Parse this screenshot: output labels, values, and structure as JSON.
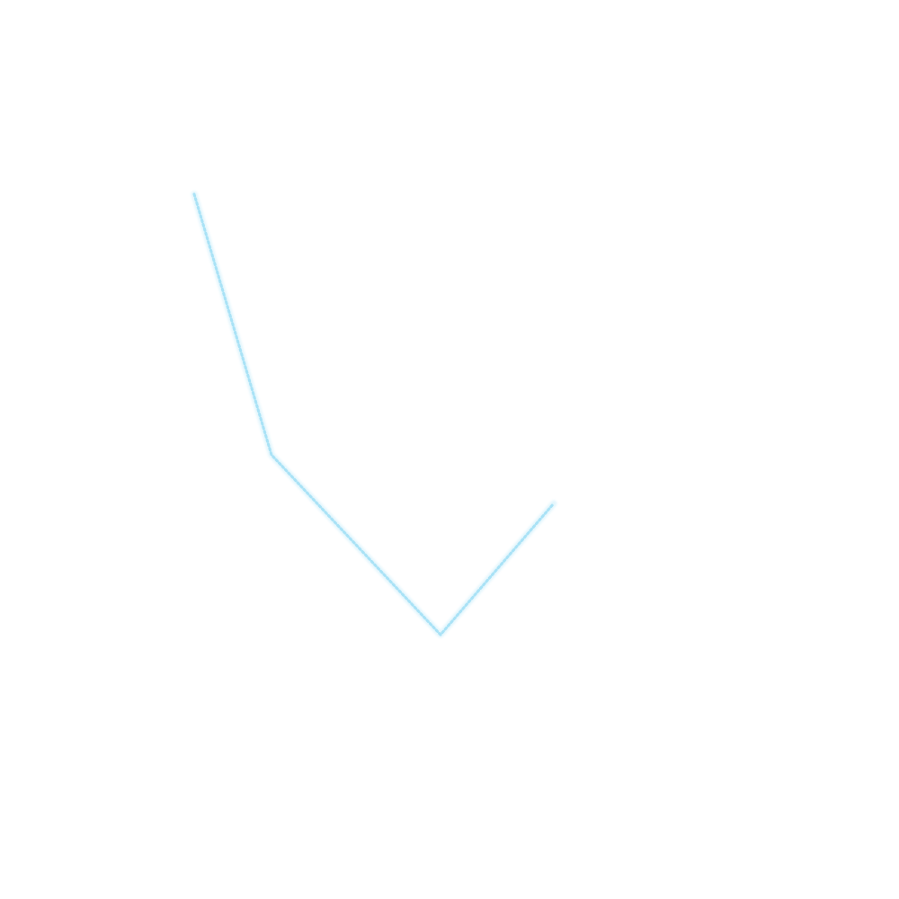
{
  "drawing": {
    "stroke": {
      "color": "#bfeaf9",
      "style": "dotted",
      "glow": true,
      "segment_count": 3
    }
  }
}
